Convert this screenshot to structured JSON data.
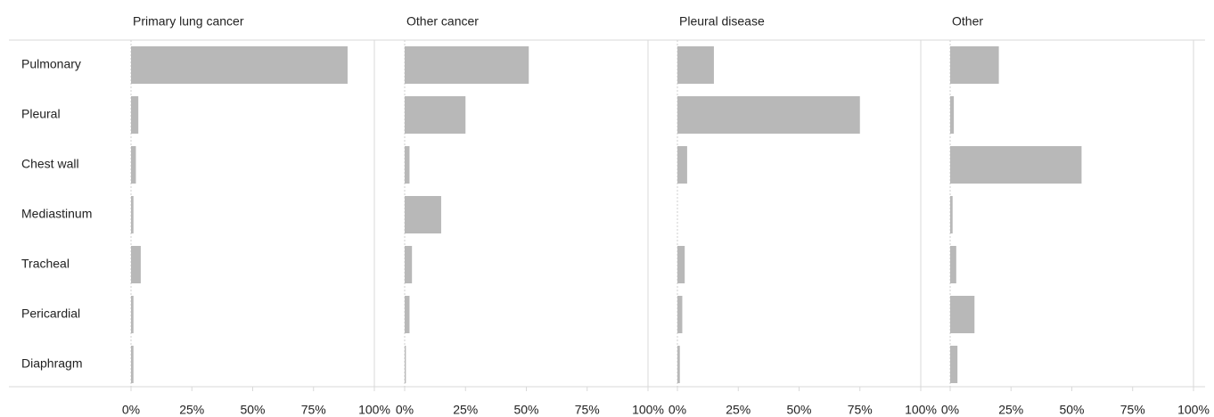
{
  "chart_data": {
    "type": "bar",
    "orientation": "horizontal",
    "categories": [
      "Pulmonary",
      "Pleural",
      "Chest wall",
      "Mediastinum",
      "Tracheal",
      "Pericardial",
      "Diaphragm"
    ],
    "panels": [
      {
        "title": "Primary lung cancer",
        "values": [
          89,
          3,
          2,
          1,
          4,
          1,
          1
        ]
      },
      {
        "title": "Other cancer",
        "values": [
          51,
          25,
          2,
          15,
          3,
          2,
          0.5
        ]
      },
      {
        "title": "Pleural disease",
        "values": [
          15,
          75,
          4,
          0,
          3,
          2,
          1
        ]
      },
      {
        "title": "Other",
        "values": [
          20,
          1.5,
          54,
          1,
          2.5,
          10,
          3
        ]
      }
    ],
    "xlim": [
      0,
      100
    ],
    "xticks": [
      0,
      25,
      50,
      75,
      100
    ],
    "xtick_labels": [
      "0%",
      "25%",
      "50%",
      "75%",
      "100%"
    ],
    "bar_color": "#b8b8b8",
    "grid_color": "#d9d9d9",
    "grid": false,
    "legend": "none"
  }
}
